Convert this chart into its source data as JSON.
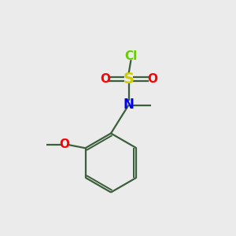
{
  "bg_color": "#ebebeb",
  "bond_color": "#3a5f3a",
  "S_color": "#cccc00",
  "Cl_color": "#66cc00",
  "O_color": "#ff0000",
  "N_color": "#0000ee",
  "line_width": 1.6,
  "font_size": 11,
  "figsize": [
    3.0,
    3.0
  ],
  "dpi": 100,
  "xlim": [
    0,
    10
  ],
  "ylim": [
    0,
    10
  ]
}
